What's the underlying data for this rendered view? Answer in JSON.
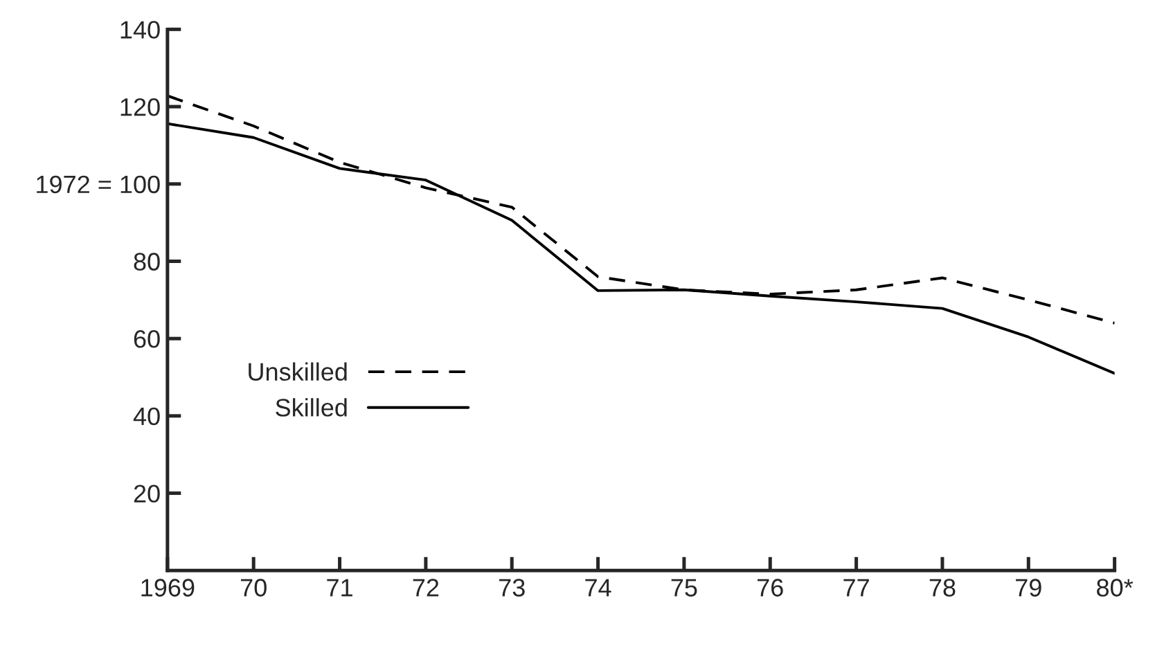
{
  "chart_data": {
    "type": "line",
    "categories": [
      "1969",
      "70",
      "71",
      "72",
      "73",
      "74",
      "75",
      "76",
      "77",
      "78",
      "79",
      "80*"
    ],
    "series": [
      {
        "name": "Unskilled",
        "color": "#000000",
        "line_style": "dashed",
        "values": [
          122.8,
          115,
          105.6,
          99,
          94,
          76,
          72.6,
          71.5,
          72.6,
          75.7,
          70,
          64
        ]
      },
      {
        "name": "Skilled",
        "color": "#000000",
        "line_style": "solid",
        "values": [
          115.6,
          112,
          104,
          101,
          90.6,
          72.4,
          72.6,
          71,
          69.5,
          67.8,
          60.4,
          51
        ]
      }
    ],
    "ylim": [
      0,
      140
    ],
    "yticks": [
      20,
      40,
      60,
      80,
      {
        "value": 100,
        "label": "1972 = 100"
      },
      120,
      140
    ],
    "grid": false,
    "legend": "left",
    "marker": "none"
  }
}
